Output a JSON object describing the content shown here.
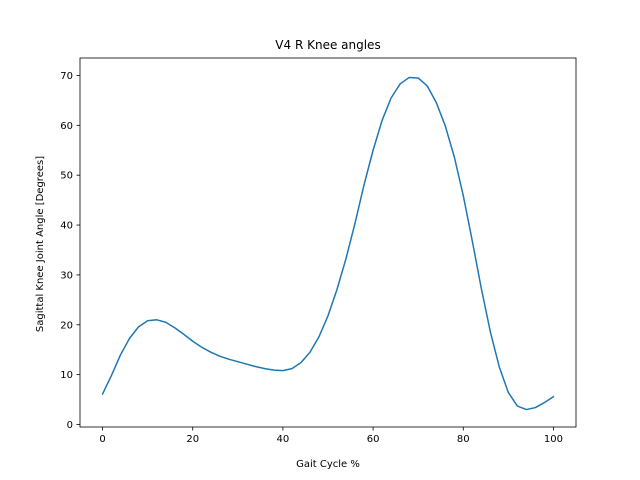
{
  "chart_data": {
    "type": "line",
    "title": "V4 R Knee angles",
    "xlabel": "Gait Cycle %",
    "ylabel": "Sagittal Knee Joint Angle [Degrees]",
    "xlim": [
      -5,
      105
    ],
    "ylim": [
      -0.5,
      73.5
    ],
    "xticks": [
      0,
      20,
      40,
      60,
      80,
      100
    ],
    "yticks": [
      0,
      10,
      20,
      30,
      40,
      50,
      60,
      70
    ],
    "grid": false,
    "legend": "none",
    "series": [
      {
        "color": "#1f77b4",
        "x": [
          0,
          2,
          4,
          6,
          8,
          10,
          12,
          14,
          16,
          18,
          20,
          22,
          24,
          26,
          28,
          30,
          32,
          34,
          36,
          38,
          40,
          42,
          44,
          46,
          48,
          50,
          52,
          54,
          56,
          58,
          60,
          62,
          64,
          66,
          68,
          70,
          72,
          74,
          76,
          78,
          80,
          82,
          84,
          86,
          88,
          90,
          92,
          94,
          96,
          98,
          100
        ],
        "y": [
          6.1,
          9.9,
          14.0,
          17.3,
          19.6,
          20.8,
          21.0,
          20.5,
          19.4,
          18.1,
          16.7,
          15.5,
          14.5,
          13.7,
          13.1,
          12.6,
          12.1,
          11.6,
          11.2,
          10.9,
          10.8,
          11.2,
          12.4,
          14.5,
          17.6,
          21.8,
          27.1,
          33.3,
          40.4,
          48.1,
          55.0,
          61.0,
          65.5,
          68.3,
          69.6,
          69.5,
          67.9,
          64.6,
          59.9,
          53.7,
          45.9,
          36.8,
          27.3,
          18.6,
          11.5,
          6.4,
          3.7,
          3.0,
          3.4,
          4.4,
          5.6
        ]
      }
    ]
  }
}
